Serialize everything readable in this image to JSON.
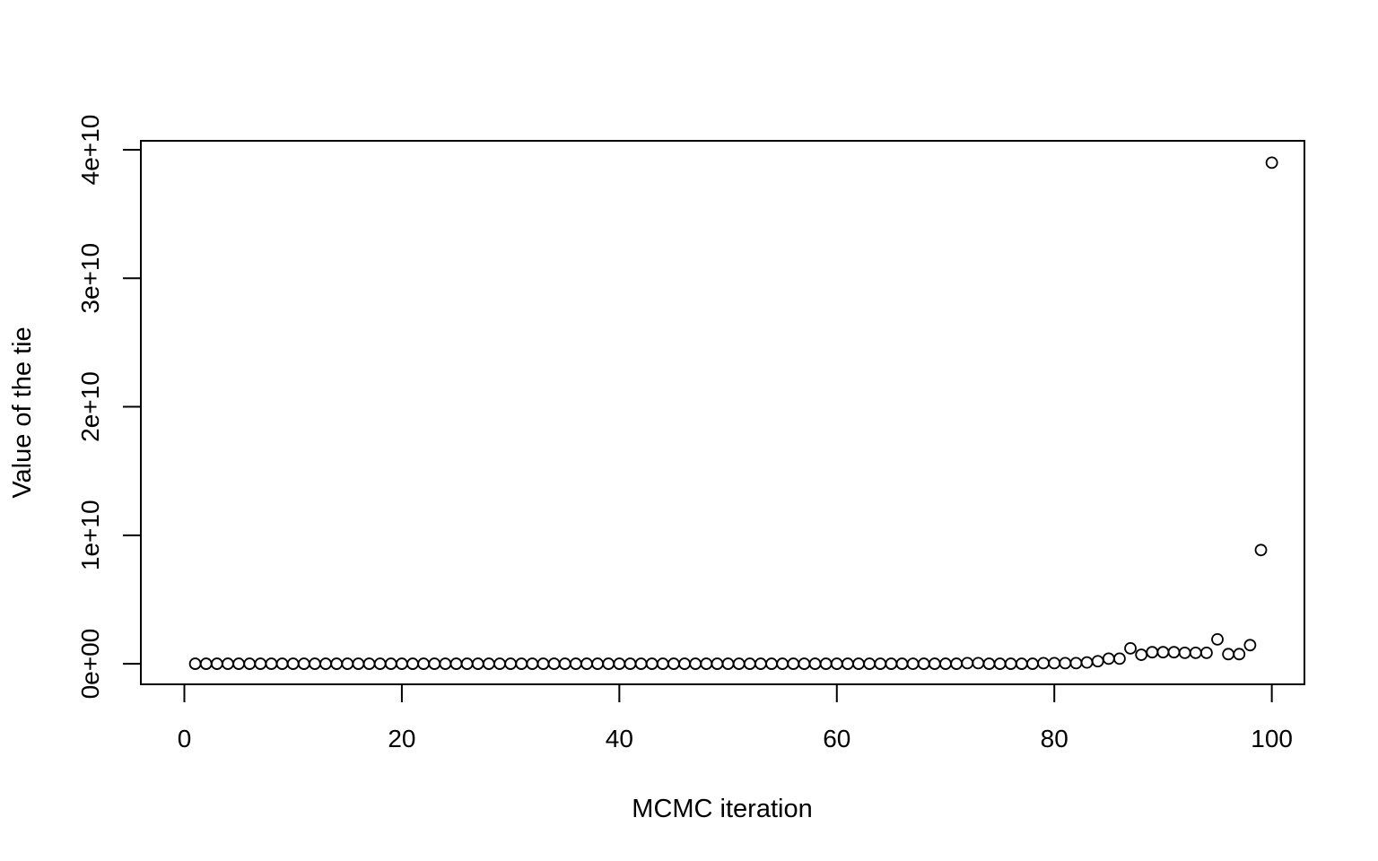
{
  "chart_data": {
    "type": "scatter",
    "xlabel": "MCMC iteration",
    "ylabel": "Value of the tie",
    "xlim": [
      -4,
      103
    ],
    "ylim": [
      -1600000000.0,
      40700000000.0
    ],
    "xticks": [
      0,
      20,
      40,
      60,
      80,
      100
    ],
    "xtick_labels": [
      "0",
      "20",
      "40",
      "60",
      "80",
      "100"
    ],
    "yticks": [
      0,
      10000000000,
      20000000000,
      30000000000,
      40000000000
    ],
    "ytick_labels": [
      "0e+00",
      "1e+10",
      "2e+10",
      "3e+10",
      "4e+10"
    ],
    "grid": false,
    "legend": false,
    "marker": "open-circle",
    "x": [
      1,
      2,
      3,
      4,
      5,
      6,
      7,
      8,
      9,
      10,
      11,
      12,
      13,
      14,
      15,
      16,
      17,
      18,
      19,
      20,
      21,
      22,
      23,
      24,
      25,
      26,
      27,
      28,
      29,
      30,
      31,
      32,
      33,
      34,
      35,
      36,
      37,
      38,
      39,
      40,
      41,
      42,
      43,
      44,
      45,
      46,
      47,
      48,
      49,
      50,
      51,
      52,
      53,
      54,
      55,
      56,
      57,
      58,
      59,
      60,
      61,
      62,
      63,
      64,
      65,
      66,
      67,
      68,
      69,
      70,
      71,
      72,
      73,
      74,
      75,
      76,
      77,
      78,
      79,
      80,
      81,
      82,
      83,
      84,
      85,
      86,
      87,
      88,
      89,
      90,
      91,
      92,
      93,
      94,
      95,
      96,
      97,
      98,
      99,
      100
    ],
    "y": [
      0,
      0,
      0,
      0,
      0,
      0,
      0,
      0,
      0,
      0,
      0,
      0,
      0,
      0,
      0,
      0,
      0,
      0,
      0,
      0,
      0,
      0,
      0,
      0,
      0,
      0,
      0,
      0,
      0,
      0,
      0,
      0,
      0,
      0,
      0,
      0,
      0,
      0,
      0,
      0,
      0,
      0,
      0,
      0,
      0,
      0,
      0,
      0,
      0,
      0,
      0,
      0,
      0,
      0,
      0,
      0,
      0,
      0,
      0,
      0,
      0,
      0,
      0,
      0,
      0,
      0,
      0,
      0,
      0,
      0,
      0,
      50000000,
      50000000,
      0,
      0,
      0,
      0,
      0,
      50000000,
      50000000,
      50000000,
      50000000,
      100000000,
      200000000,
      400000000,
      400000000,
      1200000000,
      700000000,
      900000000,
      900000000,
      900000000,
      850000000,
      850000000,
      850000000,
      1900000000,
      750000000,
      750000000,
      1450000000,
      8850000000,
      39000000000
    ]
  }
}
